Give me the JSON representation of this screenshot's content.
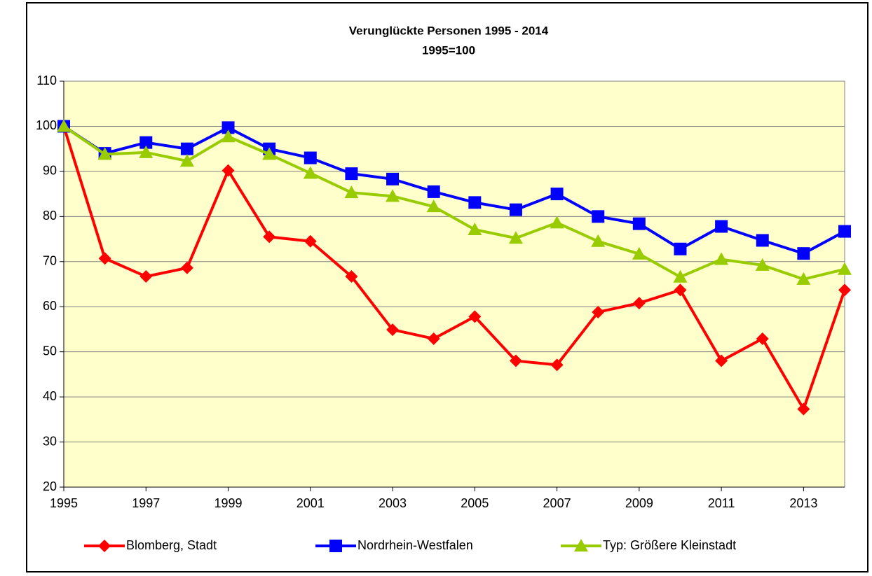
{
  "chart_data": {
    "type": "line",
    "title": "Verunglückte Personen 1995 - 2014",
    "subtitle": "1995=100",
    "x": [
      1995,
      1996,
      1997,
      1998,
      1999,
      2000,
      2001,
      2002,
      2003,
      2004,
      2005,
      2006,
      2007,
      2008,
      2009,
      2010,
      2011,
      2012,
      2013,
      2014
    ],
    "series": [
      {
        "name": "Blomberg, Stadt",
        "color": "#ff0000",
        "marker": "diamond",
        "values": [
          100,
          70.7,
          66.7,
          68.6,
          90.2,
          75.5,
          74.5,
          66.7,
          54.9,
          52.9,
          57.8,
          48.0,
          47.1,
          58.8,
          60.8,
          63.7,
          48.0,
          52.9,
          37.3,
          63.7
        ]
      },
      {
        "name": "Nordrhein-Westfalen",
        "color": "#0000ff",
        "marker": "square",
        "values": [
          100,
          94.0,
          96.4,
          95.0,
          99.7,
          95.0,
          93.0,
          89.5,
          88.3,
          85.5,
          83.1,
          81.5,
          85.0,
          80.0,
          78.4,
          72.8,
          77.8,
          74.7,
          71.8,
          76.7
        ]
      },
      {
        "name": "Typ: Größere Kleinstadt",
        "color": "#99cc00",
        "marker": "triangle",
        "values": [
          100,
          93.8,
          94.2,
          92.3,
          97.7,
          93.8,
          89.6,
          85.3,
          84.5,
          82.2,
          77.1,
          75.2,
          78.6,
          74.5,
          71.7,
          66.6,
          70.5,
          69.2,
          66.1,
          68.3
        ]
      }
    ],
    "xlim": [
      1995,
      2014
    ],
    "xticks": [
      1995,
      1997,
      1999,
      2001,
      2003,
      2005,
      2007,
      2009,
      2011,
      2013
    ],
    "ylim": [
      20,
      110
    ],
    "yticks": [
      20,
      30,
      40,
      50,
      60,
      70,
      80,
      90,
      100,
      110
    ],
    "grid": true,
    "legend": "bottom",
    "plot_background": "#ffffcc"
  }
}
